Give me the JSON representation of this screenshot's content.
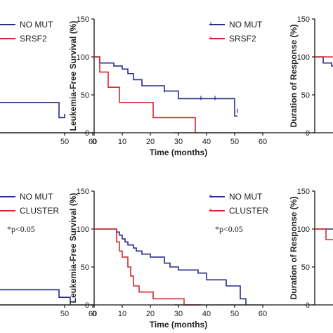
{
  "colors": {
    "no_mut": "#2b2b8a",
    "mutant": "#d42a2a",
    "axis": "#111111"
  },
  "chart_data": [
    {
      "id": "left-top",
      "type": "line",
      "step": true,
      "xlim": [
        0,
        60
      ],
      "ylim": [
        0,
        150
      ],
      "xticks": [
        "50",
        "60"
      ],
      "yticks": [],
      "xlabel": "",
      "ylabel": "",
      "legend": [
        "NO MUT",
        "SRSF2"
      ],
      "series": [
        {
          "name": "NO MUT",
          "x": [
            -10,
            48,
            48,
            50,
            50
          ],
          "y": [
            40,
            40,
            20,
            20,
            25
          ]
        }
      ]
    },
    {
      "id": "center-top",
      "type": "line",
      "step": true,
      "xlim": [
        0,
        60
      ],
      "ylim": [
        0,
        150
      ],
      "xticks": [
        "0",
        "10",
        "20",
        "30",
        "40",
        "50",
        "60"
      ],
      "yticks": [
        "0",
        "50",
        "100",
        "150"
      ],
      "xlabel": "Time (months)",
      "ylabel": "Leukemia-Free Survival (%)",
      "legend": [
        "NO MUT",
        "SRSF2"
      ],
      "series": [
        {
          "name": "NO MUT",
          "x": [
            0,
            2,
            2,
            7,
            7,
            10,
            10,
            12,
            12,
            14,
            14,
            17,
            17,
            25,
            25,
            30,
            30,
            50,
            50,
            51
          ],
          "y": [
            100,
            100,
            92,
            92,
            88,
            88,
            84,
            84,
            78,
            78,
            70,
            70,
            62,
            62,
            55,
            55,
            45,
            45,
            22,
            22
          ],
          "censor": [
            [
              25,
              55
            ],
            [
              38,
              45
            ],
            [
              43,
              45
            ],
            [
              51,
              28
            ]
          ]
        },
        {
          "name": "SRSF2",
          "x": [
            0,
            2,
            2,
            5,
            5,
            9,
            9,
            21,
            21,
            36,
            36
          ],
          "y": [
            100,
            100,
            80,
            80,
            60,
            60,
            40,
            40,
            20,
            20,
            0
          ]
        }
      ]
    },
    {
      "id": "right-top",
      "type": "line",
      "step": true,
      "xlim": [
        0,
        60
      ],
      "ylim": [
        0,
        150
      ],
      "xticks": [],
      "yticks": [
        "0",
        "50",
        "100",
        "150"
      ],
      "xlabel": "",
      "ylabel": "Duration of Response (%)",
      "series": [
        {
          "name": "NO MUT",
          "x": [
            0,
            3,
            3,
            6,
            6,
            12
          ],
          "y": [
            100,
            100,
            92,
            92,
            88,
            88
          ]
        },
        {
          "name": "SRSF2",
          "x": [
            0,
            12
          ],
          "y": [
            100,
            100
          ]
        }
      ]
    },
    {
      "id": "left-bottom",
      "type": "line",
      "step": true,
      "xlim": [
        0,
        60
      ],
      "ylim": [
        0,
        150
      ],
      "xticks": [
        "50",
        "60"
      ],
      "yticks": [],
      "xlabel": "",
      "ylabel": "",
      "legend": [
        "NO MUT",
        "CLUSTER"
      ],
      "annotation": "*p<0.05",
      "series": [
        {
          "name": "NO MUT",
          "x": [
            -10,
            48,
            48,
            52,
            52
          ],
          "y": [
            20,
            20,
            10,
            10,
            0
          ]
        }
      ]
    },
    {
      "id": "center-bottom",
      "type": "line",
      "step": true,
      "xlim": [
        0,
        60
      ],
      "ylim": [
        0,
        150
      ],
      "xticks": [
        "0",
        "10",
        "20",
        "30",
        "40",
        "50",
        "60"
      ],
      "yticks": [
        "0",
        "50",
        "100",
        "150"
      ],
      "xlabel": "Time (months)",
      "ylabel": "Leukemia-Free Survival (%)",
      "legend": [
        "NO MUT",
        "CLUSTER"
      ],
      "annotation": "*p<0.05",
      "series": [
        {
          "name": "NO MUT",
          "x": [
            0,
            8,
            8,
            9,
            9,
            10,
            10,
            11,
            11,
            12,
            12,
            14,
            14,
            15,
            15,
            17,
            17,
            20,
            20,
            25,
            25,
            27,
            27,
            30,
            30,
            37,
            37,
            40,
            40,
            47,
            47,
            52,
            52,
            54,
            54
          ],
          "y": [
            100,
            100,
            96,
            96,
            92,
            92,
            87,
            87,
            83,
            83,
            79,
            79,
            75,
            75,
            71,
            71,
            67,
            67,
            63,
            63,
            55,
            55,
            50,
            50,
            46,
            46,
            42,
            42,
            33,
            33,
            25,
            25,
            8,
            8,
            0
          ]
        },
        {
          "name": "CLUSTER",
          "x": [
            0,
            8,
            8,
            9,
            9,
            10,
            10,
            12,
            12,
            13,
            13,
            14,
            14,
            16,
            16,
            21,
            21,
            32,
            32,
            38,
            38
          ],
          "y": [
            100,
            100,
            83,
            83,
            71,
            71,
            63,
            63,
            50,
            50,
            38,
            38,
            25,
            25,
            17,
            17,
            8,
            8,
            0,
            0,
            0
          ]
        }
      ]
    },
    {
      "id": "right-bottom",
      "type": "line",
      "step": true,
      "xlim": [
        0,
        60
      ],
      "ylim": [
        0,
        150
      ],
      "xticks": [],
      "yticks": [
        "0",
        "50",
        "100",
        "150"
      ],
      "xlabel": "",
      "ylabel": "Duration of Response (%)",
      "series": [
        {
          "name": "NO MUT",
          "x": [
            0,
            12
          ],
          "y": [
            100,
            100
          ]
        },
        {
          "name": "CLUSTER",
          "x": [
            0,
            2,
            2,
            4,
            4,
            12
          ],
          "y": [
            100,
            100,
            100,
            100,
            86,
            86
          ]
        }
      ]
    }
  ]
}
